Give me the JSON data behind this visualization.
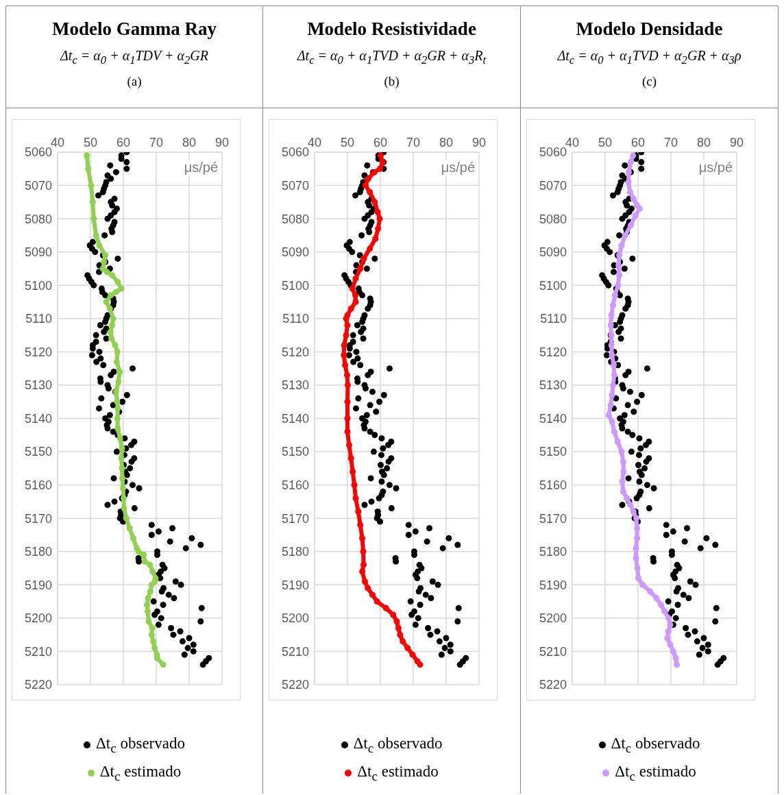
{
  "chart_data": [
    {
      "type": "scatter",
      "title": "Modelo Gamma Ray",
      "subtitle": "Δt$_{c}$ = α$_{0}$ +  α$_{1}$TDV + α$_{2}$GR",
      "annotations": [
        "(a)"
      ],
      "xlabel": "μs/pé",
      "xlim": [
        40,
        90
      ],
      "xticks": [
        40,
        50,
        60,
        70,
        80,
        90
      ],
      "ylim": [
        5220,
        5060
      ],
      "yticks": [
        5060,
        5070,
        5080,
        5090,
        5100,
        5110,
        5120,
        5130,
        5140,
        5150,
        5160,
        5170,
        5180,
        5190,
        5200,
        5210,
        5220
      ],
      "grid": true,
      "legend": "bottom",
      "marker": "circle",
      "series": [
        {
          "name": "Δt$_{c}$ observado",
          "color": "#000000",
          "x": [
            61.0,
            59.4,
            59.4,
            61.0,
            56.0,
            61.0,
            57.8,
            55.2,
            56.2,
            54.8,
            54.5,
            54.1,
            53.8,
            52.4,
            57.3,
            56.2,
            56.6,
            58.0,
            57.3,
            56.2,
            55.2,
            57.3,
            56.9,
            56.4,
            56.6,
            54.3,
            50.7,
            49.8,
            50.5,
            51.4,
            53.8,
            58.3,
            54.5,
            52.7,
            55.9,
            52.6,
            49.1,
            49.6,
            50.3,
            51.0,
            53.4,
            53.6,
            null,
            54.5,
            56.9,
            57.1,
            56.9,
            56.2,
            55.2,
            54.8,
            54.5,
            53.0,
            54.8,
            54.1,
            51.7,
            54.8,
            51.7,
            50.7,
            50.7,
            52.7,
            50.5,
            53.1,
            51.8,
            53.9,
            62.8,
            57.1,
            56.2,
            53.0,
            53.1,
            55.2,
            55.5,
            57.6,
            61.1,
            53.3,
            59.7,
            56.9,
            52.6,
            58.7,
            55.9,
            54.5,
            55.5,
            55.0,
            55.2,
            56.9,
            58.3,
            60.4,
            63.3,
            62.4,
            60.8,
            58.0,
            60.3,
            63.3,
            62.5,
            60.1,
            62.0,
            60.5,
            61.1,
            57.1,
            60.4,
            62.8,
            64.8,
            60.8,
            60.4,
            59.6,
            57.3,
            55.2,
            63.4,
            59.2,
            59.3,
            59.0,
            59.9,
            68.6,
            74.9,
            70.7,
            68.6,
            80.8,
            74.2,
            83.5,
            79.0,
            70.3,
            70.3,
            64.6,
            64.7,
            71.9,
            72.5,
            71.4,
            70.7,
            71.2,
            75.9,
            77.5,
            72.2,
            71.7,
            73.8,
            75.4,
            69.2,
            72.1,
            83.8,
            70.3,
            69.5,
            71.5,
            83.5,
            70.7,
            74.5,
            77.3,
            75.2,
            80.0,
            78.0,
            81.3,
            79.6,
            81.3,
            78.6,
            86.0,
            85.1,
            84.2
          ],
          "values": [
            5060,
            5061,
            5062,
            5063,
            5064,
            5065,
            5066,
            5067,
            5068,
            5069,
            5070,
            5071,
            5072,
            5073,
            5074,
            5075,
            5076,
            5077,
            5078,
            5079,
            5080,
            5081,
            5082,
            5083,
            5084,
            5085,
            5087,
            5088,
            5089,
            5090,
            5091,
            5092,
            5093,
            5094,
            5095,
            5096,
            5097,
            5098,
            5099,
            5100,
            5101,
            5102,
            null,
            5103,
            5104,
            5105,
            5106,
            5107,
            5109,
            5110,
            5111,
            5112,
            5113,
            5114,
            5115,
            5116,
            5117,
            5118,
            5119,
            5120,
            5121,
            5122,
            5123,
            5124,
            5125,
            5126,
            5127,
            5128,
            5129,
            5130,
            5131,
            5132,
            5133,
            5134,
            5135,
            5136,
            5137,
            5138,
            5139,
            5140,
            5141,
            5142,
            5143,
            5144,
            5145,
            5146,
            5147,
            5148,
            5149,
            5150,
            5151,
            5152,
            5153,
            5154,
            5155,
            5156,
            5157,
            5158,
            5159,
            5160,
            5161,
            5162,
            5163,
            5164,
            5165,
            5166,
            5167,
            5168,
            5169,
            5170,
            5171,
            5172,
            5173,
            5174,
            5175,
            5176,
            5177,
            5178,
            5179,
            5180,
            5181,
            5182,
            5183,
            5184,
            5185,
            5186,
            5187,
            5188,
            5189,
            5190,
            5191,
            5192,
            5193,
            5194,
            5195,
            5196,
            5197,
            5198,
            5199,
            5200,
            5201,
            5202,
            5203,
            5204,
            5205,
            5206,
            5207,
            5208,
            5209,
            5210,
            5211,
            5212,
            5213,
            5214
          ]
        },
        {
          "name": "Δt$_{c}$ estimado",
          "type": "line",
          "color": "#92d050",
          "x": [
            48.9,
            49.3,
            50.2,
            50.7,
            51.0,
            51.7,
            52.7,
            54.5,
            54.1,
            53.8,
            55.0,
            56.6,
            58.3,
            59.4,
            57.8,
            56.2,
            54.8,
            55.9,
            56.9,
            56.6,
            56.1,
            56.4,
            57.5,
            58.2,
            58.0,
            58.9,
            58.5,
            57.8,
            58.1,
            58.3,
            58.2,
            58.3,
            59.0,
            59.6,
            59.4,
            59.6,
            59.7,
            59.9,
            60.1,
            60.2,
            60.9,
            61.9,
            63.0,
            64.1,
            64.6,
            66.2,
            66.5,
            68.1,
            68.9,
            69.8,
            69.6,
            68.6,
            68.2,
            67.5,
            67.2,
            67.4,
            67.7,
            68.8,
            68.6,
            69.1,
            69.5,
            70.2,
            70.3,
            72.1
          ],
          "values": [
            5061,
            5065,
            5070,
            5075,
            5080,
            5085,
            5088,
            5091,
            5093,
            5095,
            5096,
            5097,
            5099,
            5101,
            5102,
            5103,
            5105,
            5107,
            5110,
            5112,
            5114,
            5116,
            5118,
            5120,
            5123,
            5126,
            5129,
            5132,
            5135,
            5137,
            5140,
            5143,
            5146,
            5149,
            5152,
            5155,
            5158,
            5161,
            5164,
            5167,
            5170,
            5173,
            5176,
            5179,
            5180,
            5181,
            5183,
            5184,
            5186,
            5188,
            5189,
            5190,
            5192,
            5194,
            5196,
            5198,
            5201,
            5203,
            5205,
            5207,
            5209,
            5211,
            5212,
            5214
          ]
        }
      ]
    },
    {
      "type": "scatter",
      "title": "Modelo Resistividade",
      "subtitle": "Δt$_{c}$ = α$_{0}$ + α$_{1}$TVD + α$_{2}$GR + α$_{3}$R$_{t}$",
      "annotations": [
        "(b)"
      ],
      "xlabel": "μs/pé",
      "xlim": [
        40,
        90
      ],
      "xticks": [
        40,
        50,
        60,
        70,
        80,
        90
      ],
      "ylim": [
        5220,
        5060
      ],
      "yticks": [
        5060,
        5070,
        5080,
        5090,
        5100,
        5110,
        5120,
        5130,
        5140,
        5150,
        5160,
        5170,
        5180,
        5190,
        5200,
        5210,
        5220
      ],
      "grid": true,
      "legend": "bottom",
      "marker": "circle",
      "series": [
        {
          "name": "Δt$_{c}$ observado",
          "color": "#000000",
          "x": [
            61.0,
            59.4,
            59.4,
            61.0,
            56.0,
            61.0,
            57.8,
            55.2,
            56.2,
            54.8,
            54.5,
            54.1,
            53.8,
            52.4,
            57.3,
            56.2,
            56.6,
            58.0,
            57.3,
            56.2,
            55.2,
            57.3,
            56.9,
            56.4,
            56.6,
            54.3,
            50.7,
            49.8,
            50.5,
            51.4,
            53.8,
            58.3,
            54.5,
            52.7,
            55.9,
            52.6,
            49.1,
            49.6,
            50.3,
            51.0,
            53.4,
            53.6,
            null,
            54.5,
            56.9,
            57.1,
            56.9,
            56.2,
            55.2,
            54.8,
            54.5,
            53.0,
            54.8,
            54.1,
            51.7,
            54.8,
            51.7,
            50.7,
            50.7,
            52.7,
            50.5,
            53.1,
            51.8,
            53.9,
            62.8,
            57.1,
            56.2,
            53.0,
            53.1,
            55.2,
            55.5,
            57.6,
            61.1,
            53.3,
            59.7,
            56.9,
            52.6,
            58.7,
            55.9,
            54.5,
            55.5,
            55.0,
            55.2,
            56.9,
            58.3,
            60.4,
            63.3,
            62.4,
            60.8,
            58.0,
            60.3,
            63.3,
            62.5,
            60.1,
            62.0,
            60.5,
            61.1,
            57.1,
            60.4,
            62.8,
            64.8,
            60.8,
            60.4,
            59.6,
            57.3,
            55.2,
            63.4,
            59.2,
            59.3,
            59.0,
            59.9,
            68.6,
            74.9,
            70.7,
            68.6,
            80.8,
            74.2,
            83.5,
            79.0,
            70.3,
            70.3,
            64.6,
            64.7,
            71.9,
            72.5,
            71.4,
            70.7,
            71.2,
            75.9,
            77.5,
            72.2,
            71.7,
            73.8,
            75.4,
            69.2,
            72.1,
            83.8,
            70.3,
            69.5,
            71.5,
            83.5,
            70.7,
            74.5,
            77.3,
            75.2,
            80.0,
            78.0,
            81.3,
            79.6,
            81.3,
            78.6,
            86.0,
            85.1,
            84.2
          ],
          "values": [
            5060,
            5061,
            5062,
            5063,
            5064,
            5065,
            5066,
            5067,
            5068,
            5069,
            5070,
            5071,
            5072,
            5073,
            5074,
            5075,
            5076,
            5077,
            5078,
            5079,
            5080,
            5081,
            5082,
            5083,
            5084,
            5085,
            5087,
            5088,
            5089,
            5090,
            5091,
            5092,
            5093,
            5094,
            5095,
            5096,
            5097,
            5098,
            5099,
            5100,
            5101,
            5102,
            null,
            5103,
            5104,
            5105,
            5106,
            5107,
            5109,
            5110,
            5111,
            5112,
            5113,
            5114,
            5115,
            5116,
            5117,
            5118,
            5119,
            5120,
            5121,
            5122,
            5123,
            5124,
            5125,
            5126,
            5127,
            5128,
            5129,
            5130,
            5131,
            5132,
            5133,
            5134,
            5135,
            5136,
            5137,
            5138,
            5139,
            5140,
            5141,
            5142,
            5143,
            5144,
            5145,
            5146,
            5147,
            5148,
            5149,
            5150,
            5151,
            5152,
            5153,
            5154,
            5155,
            5156,
            5157,
            5158,
            5159,
            5160,
            5161,
            5162,
            5163,
            5164,
            5165,
            5166,
            5167,
            5168,
            5169,
            5170,
            5171,
            5172,
            5173,
            5174,
            5175,
            5176,
            5177,
            5178,
            5179,
            5180,
            5181,
            5182,
            5183,
            5184,
            5185,
            5186,
            5187,
            5188,
            5189,
            5190,
            5191,
            5192,
            5193,
            5194,
            5195,
            5196,
            5197,
            5198,
            5199,
            5200,
            5201,
            5202,
            5203,
            5204,
            5205,
            5206,
            5207,
            5208,
            5209,
            5210,
            5211,
            5212,
            5213,
            5214
          ]
        },
        {
          "name": "Δt$_{c}$ estimado",
          "type": "line",
          "color": "#ff0000",
          "x": [
            60.1,
            60.7,
            59.9,
            58.2,
            56.3,
            55.5,
            56.8,
            58.3,
            59.2,
            59.8,
            59.3,
            58.5,
            56.8,
            55.0,
            53.9,
            52.5,
            51.5,
            52.4,
            52.5,
            51.1,
            50.0,
            49.6,
            50.0,
            49.6,
            49.0,
            48.9,
            49.3,
            49.9,
            50.1,
            50.0,
            50.0,
            50.0,
            50.5,
            51.1,
            51.6,
            52.1,
            52.5,
            53.3,
            53.9,
            54.5,
            54.8,
            54.9,
            54.5,
            55.3,
            56.2,
            57.6,
            59.0,
            61.7,
            63.9,
            65.0,
            65.5,
            66.0,
            66.8,
            68.3,
            69.8,
            71.3,
            72.1
          ],
          "values": [
            5061,
            5063,
            5065,
            5066,
            5068,
            5070,
            5072,
            5075,
            5078,
            5080,
            5083,
            5086,
            5089,
            5092,
            5095,
            5098,
            5101,
            5103,
            5105,
            5107,
            5109,
            5110,
            5112,
            5115,
            5118,
            5121,
            5124,
            5127,
            5130,
            5135,
            5140,
            5144,
            5148,
            5152,
            5156,
            5160,
            5164,
            5168,
            5172,
            5176,
            5180,
            5184,
            5186,
            5189,
            5191,
            5193,
            5195,
            5197,
            5199,
            5201,
            5203,
            5205,
            5207,
            5209,
            5211,
            5213,
            5214
          ]
        }
      ]
    },
    {
      "type": "scatter",
      "title": "Modelo Densidade",
      "subtitle": "Δt$_{c}$ = α$_{0}$ + α$_{1}$TVD + α$_{2}$GR + α$_{3}$ρ",
      "annotations": [
        "(c)"
      ],
      "xlabel": "μs/pé",
      "xlim": [
        40,
        90
      ],
      "xticks": [
        40,
        50,
        60,
        70,
        80,
        90
      ],
      "ylim": [
        5220,
        5060
      ],
      "yticks": [
        5060,
        5070,
        5080,
        5090,
        5100,
        5110,
        5120,
        5130,
        5140,
        5150,
        5160,
        5170,
        5180,
        5190,
        5200,
        5210,
        5220
      ],
      "grid": true,
      "legend": "bottom",
      "marker": "circle",
      "series": [
        {
          "name": "Δt$_{c}$ observado",
          "color": "#000000",
          "x": [
            61.0,
            59.4,
            59.4,
            61.0,
            56.0,
            61.0,
            57.8,
            55.2,
            56.2,
            54.8,
            54.5,
            54.1,
            53.8,
            52.4,
            57.3,
            56.2,
            56.6,
            58.0,
            57.3,
            56.2,
            55.2,
            57.3,
            56.9,
            56.4,
            56.6,
            54.3,
            50.7,
            49.8,
            50.5,
            51.4,
            53.8,
            58.3,
            54.5,
            52.7,
            55.9,
            52.6,
            49.1,
            49.6,
            50.3,
            51.0,
            53.4,
            53.6,
            null,
            54.5,
            56.9,
            57.1,
            56.9,
            56.2,
            55.2,
            54.8,
            54.5,
            53.0,
            54.8,
            54.1,
            51.7,
            54.8,
            51.7,
            50.7,
            50.7,
            52.7,
            50.5,
            53.1,
            51.8,
            53.9,
            62.8,
            57.1,
            56.2,
            53.0,
            53.1,
            55.2,
            55.5,
            57.6,
            61.1,
            53.3,
            59.7,
            56.9,
            52.6,
            58.7,
            55.9,
            54.5,
            55.5,
            55.0,
            55.2,
            56.9,
            58.3,
            60.4,
            63.3,
            62.4,
            60.8,
            58.0,
            60.3,
            63.3,
            62.5,
            60.1,
            62.0,
            60.5,
            61.1,
            57.1,
            60.4,
            62.8,
            64.8,
            60.8,
            60.4,
            59.6,
            57.3,
            55.2,
            63.4,
            59.2,
            59.3,
            59.0,
            59.9,
            68.6,
            74.9,
            70.7,
            68.6,
            80.8,
            74.2,
            83.5,
            79.0,
            70.3,
            70.3,
            64.6,
            64.7,
            71.9,
            72.5,
            71.4,
            70.7,
            71.2,
            75.9,
            77.5,
            72.2,
            71.7,
            73.8,
            75.4,
            69.2,
            72.1,
            83.8,
            70.3,
            69.5,
            71.5,
            83.5,
            70.7,
            74.5,
            77.3,
            75.2,
            80.0,
            78.0,
            81.3,
            79.6,
            81.3,
            78.6,
            86.0,
            85.1,
            84.2
          ],
          "values": [
            5060,
            5061,
            5062,
            5063,
            5064,
            5065,
            5066,
            5067,
            5068,
            5069,
            5070,
            5071,
            5072,
            5073,
            5074,
            5075,
            5076,
            5077,
            5078,
            5079,
            5080,
            5081,
            5082,
            5083,
            5084,
            5085,
            5087,
            5088,
            5089,
            5090,
            5091,
            5092,
            5093,
            5094,
            5095,
            5096,
            5097,
            5098,
            5099,
            5100,
            5101,
            5102,
            null,
            5103,
            5104,
            5105,
            5106,
            5107,
            5109,
            5110,
            5111,
            5112,
            5113,
            5114,
            5115,
            5116,
            5117,
            5118,
            5119,
            5120,
            5121,
            5122,
            5123,
            5124,
            5125,
            5126,
            5127,
            5128,
            5129,
            5130,
            5131,
            5132,
            5133,
            5134,
            5135,
            5136,
            5137,
            5138,
            5139,
            5140,
            5141,
            5142,
            5143,
            5144,
            5145,
            5146,
            5147,
            5148,
            5149,
            5150,
            5151,
            5152,
            5153,
            5154,
            5155,
            5156,
            5157,
            5158,
            5159,
            5160,
            5161,
            5162,
            5163,
            5164,
            5165,
            5166,
            5167,
            5168,
            5169,
            5170,
            5171,
            5172,
            5173,
            5174,
            5175,
            5176,
            5177,
            5178,
            5179,
            5180,
            5181,
            5182,
            5183,
            5184,
            5185,
            5186,
            5187,
            5188,
            5189,
            5190,
            5191,
            5192,
            5193,
            5194,
            5195,
            5196,
            5197,
            5198,
            5199,
            5200,
            5201,
            5202,
            5203,
            5204,
            5205,
            5206,
            5207,
            5208,
            5209,
            5210,
            5211,
            5212,
            5213,
            5214
          ]
        },
        {
          "name": "Δt$_{c}$ estimado",
          "type": "line",
          "color": "#cc99ff",
          "x": [
            58.5,
            57.8,
            57.2,
            57.1,
            57.6,
            58.6,
            59.7,
            60.5,
            59.2,
            57.8,
            56.1,
            55.0,
            54.3,
            54.1,
            54.3,
            53.9,
            53.0,
            52.4,
            51.9,
            51.7,
            51.9,
            51.9,
            52.1,
            52.6,
            52.8,
            52.4,
            52.1,
            51.7,
            51.1,
            52.1,
            52.8,
            53.8,
            55.0,
            55.5,
            55.6,
            55.2,
            55.5,
            56.6,
            57.7,
            58.6,
            59.5,
            59.7,
            59.7,
            59.4,
            59.4,
            59.8,
            60.1,
            61.4,
            63.7,
            65.6,
            67.0,
            68.1,
            69.3,
            69.8,
            69.2,
            68.9,
            69.8,
            70.7,
            71.5,
            71.8
          ],
          "values": [
            5061,
            5063,
            5066,
            5069,
            5072,
            5074,
            5076,
            5077,
            5079,
            5082,
            5085,
            5088,
            5091,
            5094,
            5097,
            5100,
            5103,
            5106,
            5109,
            5112,
            5115,
            5118,
            5121,
            5124,
            5127,
            5130,
            5133,
            5136,
            5139,
            5141,
            5144,
            5147,
            5150,
            5153,
            5156,
            5159,
            5162,
            5164,
            5166,
            5168,
            5170,
            5173,
            5176,
            5179,
            5182,
            5185,
            5188,
            5190,
            5192,
            5194,
            5196,
            5198,
            5200,
            5202,
            5204,
            5206,
            5208,
            5210,
            5212,
            5214
          ]
        }
      ]
    }
  ]
}
